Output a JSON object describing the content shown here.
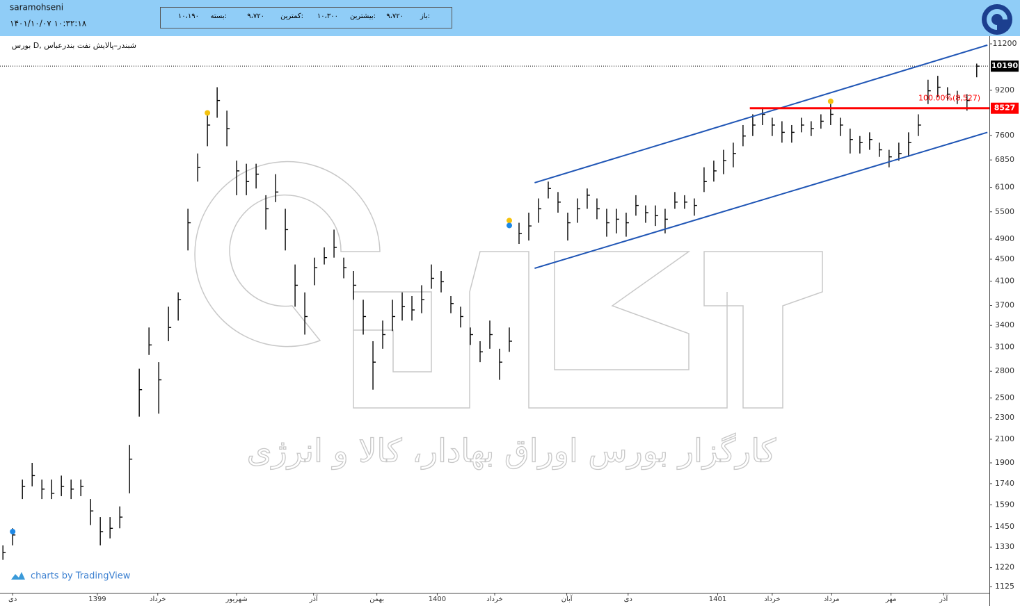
{
  "header": {
    "user": "saramohseni",
    "datetime": "۱۴۰۱/۱۰/۰۷ ۱۰:۳۲:۱۸",
    "quote": [
      {
        "label": "باز:",
        "value": "۹،۷۲۰"
      },
      {
        "label": "بیشترین:",
        "value": "۱۰،۳۰۰"
      },
      {
        "label": "کمترین:",
        "value": "۹،۷۲۰"
      },
      {
        "label": "بسته:",
        "value": "۱۰،۱۹۰"
      }
    ]
  },
  "chart_data": {
    "type": "ohlc",
    "title": "بورس D, شبندر–پالایش نفت بندرعباس",
    "watermark": "کارگزار بورس اوراق بهادار، کالا و انرژی",
    "credit": "charts by TradingView",
    "yscale": "log",
    "color": "#000000",
    "xlim": [
      -0.3,
      101.3
    ],
    "ylim": [
      1096,
      11570
    ],
    "xticks": [
      {
        "value": 1,
        "label": "دی"
      },
      {
        "value": 9.7,
        "label": "1399"
      },
      {
        "value": 15.9,
        "label": "خرداد"
      },
      {
        "value": 24,
        "label": "شهریور"
      },
      {
        "value": 31.9,
        "label": "آذر"
      },
      {
        "value": 38.4,
        "label": "بهمن"
      },
      {
        "value": 44.6,
        "label": "1400"
      },
      {
        "value": 50.5,
        "label": "خرداد"
      },
      {
        "value": 57.9,
        "label": "آبان"
      },
      {
        "value": 64.2,
        "label": "دی"
      },
      {
        "value": 73.4,
        "label": "1401"
      },
      {
        "value": 79,
        "label": "خرداد"
      },
      {
        "value": 85.1,
        "label": "مرداد"
      },
      {
        "value": 91.2,
        "label": "مهر"
      },
      {
        "value": 96.6,
        "label": "آذر"
      }
    ],
    "yticks": [
      1125,
      1220,
      1330,
      1450,
      1590,
      1740,
      1900,
      2100,
      2300,
      2500,
      2800,
      3100,
      3400,
      3700,
      4100,
      4500,
      4900,
      5500,
      6100,
      6850,
      7600,
      9200,
      11200
    ],
    "high": [
      1340,
      1440,
      1770,
      1900,
      1770,
      1770,
      1800,
      1770,
      1770,
      1630,
      1510,
      1510,
      1580,
      2050,
      2830,
      3370,
      2910,
      3680,
      3910,
      5570,
      7040,
      8440,
      9320,
      8440,
      6830,
      6740,
      6740,
      5900,
      6450,
      5570,
      4400,
      3910,
      4530,
      4730,
      5100,
      4530,
      4280,
      3790,
      3180,
      3470,
      3790,
      3910,
      3850,
      4030,
      4400,
      4280,
      3850,
      3680,
      3370,
      3180,
      3470,
      3080,
      3370,
      5250,
      5480,
      5820,
      6250,
      5980,
      5480,
      5820,
      6070,
      5820,
      5570,
      5570,
      5480,
      5900,
      5650,
      5650,
      5570,
      5980,
      5900,
      5820,
      6640,
      6830,
      7150,
      7370,
      7940,
      8310,
      8560,
      8190,
      8070,
      7940,
      8190,
      8070,
      8310,
      8680,
      8190,
      7820,
      7580,
      7700,
      7370,
      7150,
      7370,
      7700,
      8310,
      9620,
      9780,
      9320,
      9180,
      9050,
      10300
    ],
    "low": [
      1260,
      1340,
      1630,
      1720,
      1630,
      1630,
      1650,
      1630,
      1650,
      1460,
      1340,
      1380,
      1440,
      1670,
      2310,
      3000,
      2340,
      3180,
      3470,
      4670,
      6250,
      7260,
      8190,
      7260,
      5900,
      5900,
      6070,
      5100,
      5730,
      4670,
      3680,
      3270,
      4030,
      4400,
      4530,
      4150,
      3790,
      3270,
      2590,
      3080,
      3320,
      3470,
      3470,
      3580,
      3970,
      3910,
      3580,
      3370,
      3130,
      2910,
      3080,
      2700,
      3040,
      4800,
      4870,
      5250,
      5820,
      5480,
      4870,
      5250,
      5570,
      5330,
      4950,
      5020,
      4950,
      5410,
      5250,
      5180,
      5020,
      5570,
      5570,
      5410,
      5980,
      6250,
      6450,
      6640,
      7260,
      7580,
      7940,
      7580,
      7370,
      7370,
      7700,
      7580,
      7820,
      7940,
      7580,
      7040,
      7040,
      7150,
      6940,
      6640,
      6830,
      6940,
      7580,
      8680,
      8930,
      8810,
      8680,
      8440,
      9720
    ],
    "close": [
      1300,
      1400,
      1720,
      1800,
      1700,
      1670,
      1720,
      1700,
      1720,
      1550,
      1420,
      1440,
      1510,
      1930,
      2590,
      3130,
      2700,
      3370,
      3790,
      5250,
      6640,
      7940,
      8810,
      7820,
      6540,
      6250,
      6450,
      5570,
      5980,
      5100,
      4030,
      3530,
      4340,
      4530,
      4730,
      4340,
      4030,
      3530,
      2910,
      3270,
      3530,
      3680,
      3630,
      3790,
      4150,
      4090,
      3730,
      3530,
      3270,
      3040,
      3270,
      2910,
      3180,
      5020,
      5180,
      5570,
      6070,
      5730,
      5250,
      5570,
      5900,
      5570,
      5250,
      5330,
      5250,
      5650,
      5480,
      5410,
      5330,
      5730,
      5730,
      5650,
      6250,
      6540,
      6830,
      7040,
      7580,
      7940,
      8310,
      7940,
      7700,
      7700,
      7940,
      7820,
      8070,
      8310,
      7940,
      7470,
      7370,
      7470,
      7150,
      6940,
      7040,
      7370,
      7940,
      9180,
      9320,
      9050,
      8930,
      8810,
      10190
    ],
    "markers": [
      {
        "x": 1,
        "y": 1420,
        "color": "#1e88e5"
      },
      {
        "x": 21,
        "y": 8360,
        "color": "#f4c20d"
      },
      {
        "x": 52,
        "y": 5300,
        "color": "#f4c20d"
      },
      {
        "x": 52,
        "y": 5190,
        "color": "#1e88e5"
      },
      {
        "x": 85,
        "y": 8780,
        "color": "#f4c20d"
      }
    ],
    "trendlines": [
      {
        "x": [
          54.6,
          101.1
        ],
        "y": [
          6220,
          11140
        ],
        "color": "#1f55b5"
      },
      {
        "x": [
          54.6,
          101.1
        ],
        "y": [
          4330,
          7700
        ],
        "color": "#1f55b5"
      }
    ],
    "hline": {
      "value": 8527,
      "x_start": 76.7,
      "color": "#ff0000"
    },
    "annotation": "100.00%(8,527)",
    "last_price": 10190
  }
}
